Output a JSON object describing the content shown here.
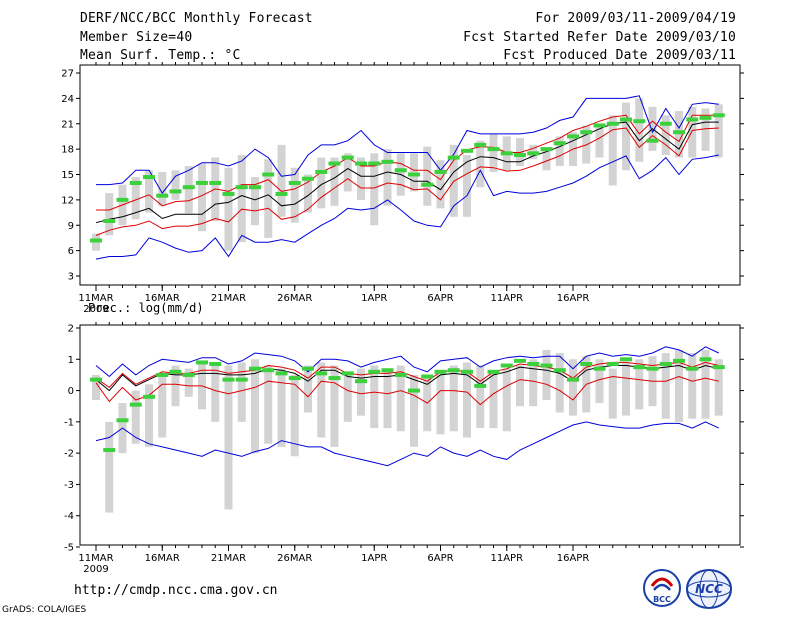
{
  "header": {
    "title": "DERF/NCC/BCC Monthly Forecast",
    "member_size": "Member Size=40",
    "variable": "Mean Surf. Temp.: °C",
    "period": "For 2009/03/11-2009/04/19",
    "started": "Fcst Started Refer Date 2009/03/10",
    "produced": "Fcst Produced Date 2009/03/11"
  },
  "footer": {
    "url": "http://cmdp.ncc.cma.gov.cn",
    "credit": "GrADS: COLA/IGES",
    "logo1": "BCC",
    "logo2": "NCC"
  },
  "colors": {
    "bar": "#d3d3d3",
    "green": "#3cd03c",
    "red": "#dd0000",
    "blue": "#0000dd",
    "mean": "#000000"
  },
  "chart_data": [
    {
      "type": "ensemble-boxplot",
      "title": "Mean Surf. Temp.: °C",
      "ylim": [
        2,
        28
      ],
      "yticks": [
        3,
        6,
        9,
        12,
        15,
        18,
        21,
        24,
        27
      ],
      "xticks": [
        "11MAR",
        "16MAR",
        "21MAR",
        "26MAR",
        "1APR",
        "6APR",
        "11APR",
        "16APR"
      ],
      "x_year": "2009",
      "bar_low": [
        6.0,
        7.8,
        9.0,
        9.7,
        10.5,
        11.3,
        12.0,
        10.4,
        8.3,
        9.5,
        6.0,
        7.0,
        9.0,
        7.5,
        10.0,
        9.3,
        10.5,
        11.0,
        11.3,
        13.0,
        12.0,
        9.0,
        11.3,
        12.5,
        13.0,
        11.3,
        11.0,
        10.0,
        10.0,
        13.5,
        15.3,
        15.5,
        16.0,
        16.8,
        15.5,
        16.0,
        16.0,
        16.3,
        17.0,
        13.7,
        15.5,
        16.5,
        17.8,
        17.3,
        17.0,
        17.0,
        17.8,
        17.0
      ],
      "bar_high": [
        8.0,
        12.8,
        13.8,
        14.7,
        15.5,
        15.3,
        15.5,
        16.0,
        16.3,
        17.0,
        15.8,
        17.3,
        14.7,
        16.8,
        18.5,
        15.8,
        15.0,
        17.0,
        17.0,
        17.5,
        17.0,
        17.5,
        18.0,
        17.5,
        17.5,
        18.3,
        16.7,
        18.5,
        17.3,
        19.0,
        19.8,
        19.5,
        19.3,
        18.5,
        18.0,
        19.5,
        20.0,
        20.8,
        21.0,
        22.0,
        23.5,
        24.0,
        23.0,
        22.0,
        22.5,
        23.0,
        22.8,
        23.3
      ],
      "green": [
        7.2,
        9.5,
        12.0,
        14.0,
        14.7,
        12.5,
        13.0,
        13.5,
        14.0,
        14.0,
        12.7,
        13.5,
        13.5,
        15.0,
        12.7,
        14.0,
        14.5,
        15.3,
        16.3,
        17.0,
        16.3,
        16.3,
        16.5,
        15.5,
        15.0,
        13.8,
        15.3,
        17.0,
        17.8,
        18.5,
        18.0,
        17.5,
        17.3,
        17.5,
        18.0,
        18.7,
        19.5,
        20.0,
        20.8,
        21.0,
        21.5,
        21.3,
        19.0,
        21.0,
        20.0,
        21.5,
        21.7,
        22.0
      ],
      "mean": [
        9.3,
        9.7,
        10.0,
        10.5,
        11.0,
        9.8,
        10.3,
        10.3,
        10.3,
        11.5,
        11.7,
        12.5,
        12.0,
        12.6,
        11.3,
        11.5,
        12.5,
        13.8,
        14.6,
        15.7,
        14.8,
        14.8,
        15.3,
        15.0,
        14.2,
        14.2,
        13.2,
        15.3,
        16.5,
        17.1,
        17.0,
        16.5,
        16.5,
        17.2,
        17.7,
        18.3,
        19.0,
        19.7,
        20.4,
        21.0,
        21.2,
        19.0,
        20.4,
        19.2,
        18.0,
        20.9,
        21.2,
        21.2
      ],
      "red_upper": [
        10.8,
        10.8,
        11.4,
        12.0,
        12.6,
        11.3,
        11.8,
        11.9,
        12.5,
        13.3,
        13.0,
        13.8,
        13.8,
        14.4,
        13.0,
        13.3,
        14.1,
        15.3,
        16.0,
        17.0,
        16.0,
        16.0,
        16.5,
        16.3,
        15.5,
        15.5,
        14.4,
        16.7,
        17.9,
        18.3,
        18.2,
        17.6,
        17.6,
        18.1,
        18.7,
        19.3,
        20.2,
        20.7,
        21.3,
        21.8,
        22.0,
        19.8,
        21.3,
        20.0,
        18.9,
        22.0,
        22.0,
        22.0
      ],
      "red_lower": [
        7.8,
        8.4,
        8.8,
        9.0,
        9.5,
        8.6,
        8.9,
        8.9,
        9.2,
        9.8,
        9.4,
        10.9,
        10.7,
        11.0,
        9.7,
        10.0,
        10.9,
        12.3,
        13.4,
        14.5,
        13.4,
        13.4,
        14.0,
        13.8,
        13.2,
        13.3,
        12.0,
        14.2,
        15.1,
        15.9,
        15.8,
        15.4,
        15.5,
        16.0,
        16.6,
        17.2,
        18.0,
        18.5,
        19.3,
        20.3,
        20.5,
        18.2,
        19.6,
        18.5,
        17.2,
        20.2,
        20.4,
        20.5
      ],
      "blue_upper": [
        13.8,
        13.8,
        14.0,
        15.5,
        15.5,
        12.8,
        14.8,
        15.5,
        16.4,
        16.4,
        16.0,
        16.6,
        18.0,
        17.0,
        14.8,
        15.0,
        17.3,
        18.5,
        18.5,
        19.0,
        20.2,
        18.5,
        17.6,
        17.6,
        17.6,
        17.6,
        15.5,
        17.4,
        20.2,
        19.8,
        19.8,
        19.8,
        19.8,
        20.0,
        20.5,
        21.4,
        21.8,
        24.0,
        24.0,
        24.0,
        24.0,
        24.3,
        20.0,
        22.8,
        20.5,
        23.3,
        23.5,
        23.3
      ],
      "blue_lower": [
        5.0,
        5.3,
        5.3,
        5.5,
        7.5,
        7.0,
        6.3,
        5.8,
        6.0,
        7.5,
        5.3,
        7.8,
        7.0,
        7.0,
        7.3,
        7.0,
        8.0,
        9.0,
        9.8,
        11.0,
        10.8,
        11.0,
        12.0,
        10.8,
        9.5,
        9.0,
        8.8,
        11.3,
        12.5,
        15.5,
        12.5,
        13.0,
        12.8,
        12.8,
        13.0,
        13.5,
        14.0,
        14.8,
        15.8,
        16.5,
        17.2,
        14.5,
        15.5,
        17.0,
        15.0,
        16.8,
        17.0,
        17.3
      ]
    },
    {
      "type": "ensemble-boxplot",
      "title": "Prec.: log(mm/d)",
      "ylim": [
        -5,
        2
      ],
      "yticks": [
        -5,
        -4,
        -3,
        -2,
        -1,
        0,
        1,
        2
      ],
      "xticks": [
        "11MAR",
        "16MAR",
        "21MAR",
        "26MAR",
        "1APR",
        "6APR",
        "11APR",
        "16APR"
      ],
      "x_year": "2009",
      "bar_low": [
        -0.3,
        -3.9,
        -2.0,
        -1.7,
        -1.8,
        -1.5,
        -0.5,
        -0.2,
        -0.6,
        -1.0,
        -3.8,
        -1.0,
        -2.0,
        -1.7,
        -1.8,
        -2.1,
        -0.7,
        -1.5,
        -1.8,
        -1.0,
        -0.8,
        -1.2,
        -1.2,
        -1.3,
        -1.8,
        -1.3,
        -1.4,
        -1.3,
        -1.5,
        -1.2,
        -1.2,
        -1.3,
        -0.5,
        -0.5,
        -0.3,
        -0.7,
        -0.8,
        -0.7,
        -0.4,
        -0.9,
        -0.8,
        -0.6,
        -0.5,
        -0.9,
        -1.0,
        -0.9,
        -0.9,
        -0.8
      ],
      "bar_high": [
        0.5,
        -1.0,
        -0.4,
        0.0,
        0.2,
        0.5,
        0.8,
        0.7,
        0.9,
        0.9,
        0.8,
        0.9,
        1.0,
        0.8,
        0.7,
        0.5,
        0.8,
        0.9,
        0.8,
        0.6,
        0.7,
        0.8,
        0.7,
        0.8,
        0.5,
        0.4,
        0.6,
        0.8,
        0.9,
        0.8,
        0.6,
        0.7,
        0.8,
        1.0,
        1.3,
        1.2,
        1.0,
        1.1,
        1.0,
        0.7,
        0.9,
        1.0,
        1.1,
        1.2,
        1.3,
        1.2,
        1.3,
        1.0
      ],
      "green": [
        0.35,
        -1.9,
        -0.95,
        -0.45,
        -0.2,
        0.5,
        0.6,
        0.5,
        0.9,
        0.85,
        0.35,
        0.35,
        0.7,
        0.65,
        0.55,
        0.4,
        0.7,
        0.55,
        0.4,
        0.55,
        0.3,
        0.6,
        0.65,
        0.5,
        0.0,
        0.45,
        0.6,
        0.65,
        0.6,
        0.15,
        0.6,
        0.8,
        0.95,
        0.85,
        0.8,
        0.65,
        0.35,
        0.85,
        0.7,
        0.85,
        1.0,
        0.75,
        0.7,
        0.85,
        0.95,
        0.7,
        1.0,
        0.75
      ],
      "mean": [
        0.35,
        0.0,
        0.5,
        0.15,
        0.35,
        0.55,
        0.5,
        0.5,
        0.55,
        0.55,
        0.5,
        0.5,
        0.55,
        0.7,
        0.65,
        0.55,
        0.3,
        0.65,
        0.65,
        0.45,
        0.4,
        0.45,
        0.45,
        0.5,
        0.35,
        0.2,
        0.5,
        0.55,
        0.5,
        0.2,
        0.5,
        0.6,
        0.75,
        0.7,
        0.65,
        0.55,
        0.3,
        0.65,
        0.75,
        0.8,
        0.8,
        0.75,
        0.7,
        0.75,
        0.8,
        0.65,
        0.8,
        0.7
      ],
      "red_upper": [
        0.4,
        0.1,
        0.55,
        0.2,
        0.4,
        0.6,
        0.55,
        0.55,
        0.65,
        0.65,
        0.55,
        0.6,
        0.65,
        0.8,
        0.75,
        0.65,
        0.4,
        0.75,
        0.75,
        0.55,
        0.5,
        0.55,
        0.55,
        0.6,
        0.45,
        0.3,
        0.6,
        0.65,
        0.6,
        0.3,
        0.6,
        0.7,
        0.85,
        0.8,
        0.75,
        0.65,
        0.4,
        0.75,
        0.85,
        0.9,
        0.9,
        0.85,
        0.8,
        0.85,
        0.9,
        0.75,
        0.9,
        0.8
      ],
      "red_lower": [
        0.25,
        -0.35,
        0.1,
        -0.3,
        -0.15,
        0.2,
        0.2,
        0.15,
        0.15,
        0.0,
        -0.1,
        0.0,
        0.1,
        0.3,
        0.25,
        0.2,
        -0.2,
        0.3,
        0.25,
        0.0,
        -0.1,
        -0.05,
        -0.1,
        0.0,
        -0.15,
        -0.4,
        0.0,
        0.0,
        -0.05,
        -0.45,
        -0.1,
        0.15,
        0.35,
        0.3,
        0.2,
        0.0,
        -0.3,
        0.2,
        0.35,
        0.45,
        0.4,
        0.35,
        0.3,
        0.3,
        0.45,
        0.3,
        0.4,
        0.3
      ],
      "blue_upper": [
        0.8,
        0.45,
        0.85,
        0.5,
        0.8,
        1.0,
        0.95,
        0.9,
        1.05,
        1.05,
        0.85,
        0.95,
        1.2,
        1.15,
        1.1,
        0.95,
        0.6,
        1.0,
        1.0,
        0.95,
        0.75,
        0.9,
        1.0,
        1.1,
        0.75,
        0.6,
        0.95,
        1.0,
        1.05,
        0.75,
        0.95,
        1.05,
        1.1,
        1.05,
        1.1,
        1.1,
        0.7,
        1.1,
        1.2,
        1.1,
        1.15,
        1.1,
        1.2,
        1.4,
        1.3,
        1.1,
        1.4,
        1.2
      ],
      "blue_lower": [
        -1.6,
        -1.5,
        -1.2,
        -1.5,
        -1.7,
        -1.8,
        -1.9,
        -2.0,
        -2.1,
        -1.9,
        -2.0,
        -2.1,
        -1.95,
        -1.85,
        -1.6,
        -1.7,
        -1.8,
        -1.8,
        -2.0,
        -2.1,
        -2.2,
        -2.3,
        -2.4,
        -2.2,
        -2.0,
        -2.1,
        -1.8,
        -2.0,
        -2.1,
        -1.9,
        -2.1,
        -2.2,
        -1.9,
        -1.7,
        -1.5,
        -1.3,
        -1.1,
        -1.0,
        -1.1,
        -1.15,
        -1.2,
        -1.2,
        -1.1,
        -1.05,
        -1.05,
        -1.2,
        -1.0,
        -1.2
      ]
    }
  ]
}
